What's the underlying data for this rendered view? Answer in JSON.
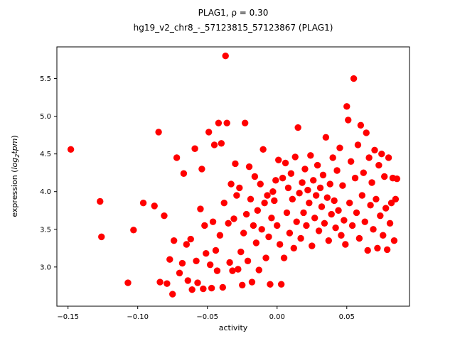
{
  "chart_data": {
    "type": "scatter",
    "title_line1": "PLAG1, ρ = 0.30",
    "title_line2": "hg19_v2_chr8_-_57123815_57123867 (PLAG1)",
    "xlabel": "activity",
    "ylabel_prefix": "expression (",
    "ylabel_log": "log",
    "ylabel_sub": "2",
    "ylabel_var": "tpm",
    "ylabel_suffix": ")",
    "marker_color": "#ff0000",
    "marker_radius": 4.7,
    "xlim": [
      -0.158,
      0.095
    ],
    "ylim": [
      2.48,
      5.92
    ],
    "xtick_values": [
      -0.15,
      -0.1,
      -0.05,
      0.0,
      0.05
    ],
    "xtick_labels": [
      "−0.15",
      "−0.10",
      "−0.05",
      "0.00",
      "0.05"
    ],
    "ytick_values": [
      3.0,
      3.5,
      4.0,
      4.5,
      5.0,
      5.5
    ],
    "ytick_labels": [
      "3.0",
      "3.5",
      "4.0",
      "4.5",
      "5.0",
      "5.5"
    ],
    "points": [
      [
        -0.148,
        4.56
      ],
      [
        -0.127,
        3.87
      ],
      [
        -0.126,
        3.4
      ],
      [
        -0.107,
        2.79
      ],
      [
        -0.103,
        3.49
      ],
      [
        -0.096,
        3.85
      ],
      [
        -0.088,
        3.81
      ],
      [
        -0.085,
        4.79
      ],
      [
        -0.084,
        2.8
      ],
      [
        -0.081,
        3.68
      ],
      [
        -0.079,
        2.78
      ],
      [
        -0.077,
        3.1
      ],
      [
        -0.075,
        2.64
      ],
      [
        -0.074,
        3.35
      ],
      [
        -0.072,
        4.45
      ],
      [
        -0.07,
        2.92
      ],
      [
        -0.068,
        3.05
      ],
      [
        -0.067,
        4.24
      ],
      [
        -0.065,
        3.3
      ],
      [
        -0.064,
        2.82
      ],
      [
        -0.062,
        3.37
      ],
      [
        -0.061,
        2.7
      ],
      [
        -0.059,
        4.57
      ],
      [
        -0.058,
        3.08
      ],
      [
        -0.057,
        2.79
      ],
      [
        -0.055,
        3.77
      ],
      [
        -0.054,
        4.3
      ],
      [
        -0.053,
        2.71
      ],
      [
        -0.052,
        3.55
      ],
      [
        -0.051,
        3.18
      ],
      [
        -0.049,
        4.79
      ],
      [
        -0.048,
        3.03
      ],
      [
        -0.047,
        2.72
      ],
      [
        -0.046,
        3.6
      ],
      [
        -0.045,
        4.62
      ],
      [
        -0.044,
        3.22
      ],
      [
        -0.043,
        2.95
      ],
      [
        -0.042,
        4.91
      ],
      [
        -0.041,
        3.42
      ],
      [
        -0.04,
        4.64
      ],
      [
        -0.039,
        2.73
      ],
      [
        -0.038,
        3.85
      ],
      [
        -0.037,
        5.8
      ],
      [
        -0.036,
        4.91
      ],
      [
        -0.035,
        3.58
      ],
      [
        -0.034,
        3.06
      ],
      [
        -0.033,
        4.1
      ],
      [
        -0.032,
        2.95
      ],
      [
        -0.031,
        3.64
      ],
      [
        -0.03,
        4.37
      ],
      [
        -0.029,
        3.95
      ],
      [
        -0.028,
        2.97
      ],
      [
        -0.027,
        4.05
      ],
      [
        -0.026,
        3.2
      ],
      [
        -0.025,
        2.76
      ],
      [
        -0.024,
        3.45
      ],
      [
        -0.023,
        4.91
      ],
      [
        -0.022,
        3.7
      ],
      [
        -0.021,
        3.08
      ],
      [
        -0.02,
        4.33
      ],
      [
        -0.019,
        3.9
      ],
      [
        -0.018,
        2.8
      ],
      [
        -0.017,
        3.55
      ],
      [
        -0.016,
        4.2
      ],
      [
        -0.015,
        3.32
      ],
      [
        -0.014,
        3.75
      ],
      [
        -0.013,
        2.96
      ],
      [
        -0.012,
        4.1
      ],
      [
        -0.011,
        3.5
      ],
      [
        -0.01,
        4.56
      ],
      [
        -0.009,
        3.85
      ],
      [
        -0.008,
        3.12
      ],
      [
        -0.007,
        3.95
      ],
      [
        -0.006,
        3.4
      ],
      [
        -0.005,
        2.77
      ],
      [
        -0.004,
        3.65
      ],
      [
        -0.003,
        4.0
      ],
      [
        -0.002,
        3.88
      ],
      [
        -0.001,
        4.15
      ],
      [
        0.0,
        3.55
      ],
      [
        0.001,
        4.42
      ],
      [
        0.002,
        3.3
      ],
      [
        0.003,
        2.77
      ],
      [
        0.004,
        4.18
      ],
      [
        0.005,
        3.12
      ],
      [
        0.006,
        4.38
      ],
      [
        0.007,
        3.72
      ],
      [
        0.008,
        4.05
      ],
      [
        0.009,
        3.45
      ],
      [
        0.01,
        4.24
      ],
      [
        0.011,
        3.9
      ],
      [
        0.012,
        3.25
      ],
      [
        0.013,
        4.46
      ],
      [
        0.014,
        3.6
      ],
      [
        0.015,
        4.85
      ],
      [
        0.016,
        3.98
      ],
      [
        0.017,
        3.38
      ],
      [
        0.018,
        4.12
      ],
      [
        0.019,
        3.72
      ],
      [
        0.02,
        4.3
      ],
      [
        0.021,
        3.55
      ],
      [
        0.022,
        4.02
      ],
      [
        0.023,
        3.85
      ],
      [
        0.024,
        4.48
      ],
      [
        0.025,
        3.28
      ],
      [
        0.026,
        4.15
      ],
      [
        0.027,
        3.65
      ],
      [
        0.028,
        3.95
      ],
      [
        0.029,
        4.35
      ],
      [
        0.03,
        3.48
      ],
      [
        0.031,
        4.05
      ],
      [
        0.032,
        3.8
      ],
      [
        0.033,
        4.22
      ],
      [
        0.034,
        3.58
      ],
      [
        0.035,
        4.72
      ],
      [
        0.036,
        3.92
      ],
      [
        0.037,
        3.35
      ],
      [
        0.038,
        4.1
      ],
      [
        0.039,
        3.7
      ],
      [
        0.04,
        4.45
      ],
      [
        0.041,
        3.88
      ],
      [
        0.042,
        3.52
      ],
      [
        0.043,
        4.28
      ],
      [
        0.044,
        3.75
      ],
      [
        0.045,
        4.58
      ],
      [
        0.046,
        3.42
      ],
      [
        0.047,
        4.08
      ],
      [
        0.048,
        3.62
      ],
      [
        0.049,
        3.3
      ],
      [
        0.05,
        5.13
      ],
      [
        0.051,
        4.95
      ],
      [
        0.052,
        3.85
      ],
      [
        0.053,
        4.4
      ],
      [
        0.054,
        3.55
      ],
      [
        0.055,
        5.5
      ],
      [
        0.056,
        4.18
      ],
      [
        0.057,
        3.72
      ],
      [
        0.058,
        4.62
      ],
      [
        0.059,
        3.38
      ],
      [
        0.06,
        4.88
      ],
      [
        0.061,
        3.95
      ],
      [
        0.062,
        4.25
      ],
      [
        0.063,
        3.6
      ],
      [
        0.064,
        4.78
      ],
      [
        0.065,
        3.22
      ],
      [
        0.066,
        4.45
      ],
      [
        0.067,
        3.82
      ],
      [
        0.068,
        4.12
      ],
      [
        0.069,
        3.5
      ],
      [
        0.07,
        4.55
      ],
      [
        0.071,
        3.9
      ],
      [
        0.072,
        3.25
      ],
      [
        0.073,
        4.35
      ],
      [
        0.074,
        3.68
      ],
      [
        0.075,
        4.5
      ],
      [
        0.076,
        3.42
      ],
      [
        0.077,
        4.2
      ],
      [
        0.078,
        3.78
      ],
      [
        0.079,
        3.23
      ],
      [
        0.08,
        4.45
      ],
      [
        0.081,
        3.58
      ],
      [
        0.082,
        3.85
      ],
      [
        0.083,
        4.18
      ],
      [
        0.084,
        3.35
      ],
      [
        0.085,
        3.9
      ],
      [
        0.086,
        4.17
      ]
    ]
  }
}
